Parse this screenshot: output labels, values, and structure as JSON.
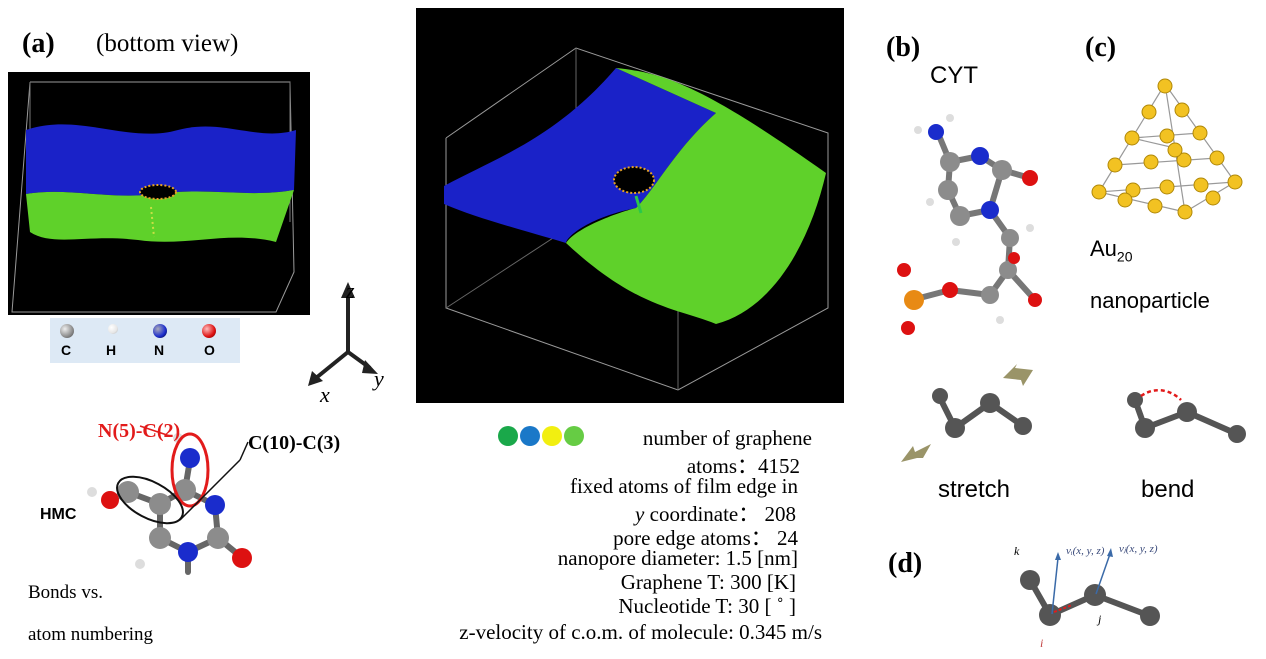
{
  "panel_a": {
    "label": "(a)",
    "view_caption": "(bottom view)",
    "legend": [
      {
        "symbol": "C",
        "color": "#8c8c8c"
      },
      {
        "symbol": "H",
        "color": "#e6e6e6"
      },
      {
        "symbol": "N",
        "color": "#1a2ccc"
      },
      {
        "symbol": "O",
        "color": "#dd1111"
      }
    ],
    "axes": {
      "z": "z",
      "x": "x",
      "y": "y"
    },
    "bond_labels": {
      "n5c2": "N(5)-C(2)",
      "c10c3": "C(10)-C(3)",
      "hmc": "HMC"
    },
    "caption_line1": "Bonds vs.",
    "caption_line2": "atom numbering"
  },
  "panel_b": {
    "label": "(b)",
    "molecule": "CYT",
    "stretch": "stretch",
    "bend": "bend"
  },
  "panel_c": {
    "label": "(c)",
    "name_line1": "Au",
    "subscript": "20",
    "name_line2": "nanoparticle"
  },
  "panel_d": {
    "label": "(d)",
    "k": "k",
    "i": "i",
    "j": "j",
    "vi": "vᵢ(x, y, z)",
    "vj": "vⱼ(x, y, z)"
  },
  "colors": {
    "graphene_green": "#5fd12a",
    "graphene_blue": "#1a22c8",
    "background_black": "#000000",
    "dot_colors": [
      "#1aa84a",
      "#1a78c8",
      "#f2ef10",
      "#66cc44"
    ]
  },
  "info": {
    "line1": "number of graphene",
    "line2": "atoms：4152",
    "line3": "fixed atoms of film edge in",
    "line4_a": "y",
    "line4_b": " coordinate：    208",
    "line5": "pore edge atoms：       24",
    "line6": "nanopore diameter:     1.5 [nm]",
    "line7": "Graphene T:      300     [K]",
    "line8": "Nucleotide  T:       30    [  ˚  ]",
    "line9": "z-velocity  of  c.o.m.  of  molecule:  0.345  m/s"
  }
}
